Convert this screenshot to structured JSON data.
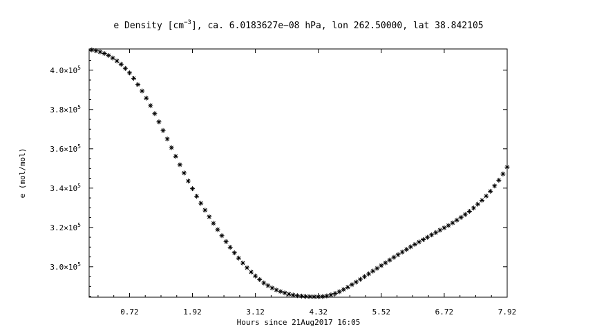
{
  "chart_data": {
    "type": "scatter",
    "title_main": "e Density [cm",
    "title_sup": "−3",
    "title_rest": "], ca. 6.0183627e−08 hPa, lon 262.50000, lat 38.842105",
    "xlabel": "Hours since 21Aug2017 16:05",
    "ylabel": "e (mol/mol)",
    "xlim": [
      -0.05,
      7.92
    ],
    "ylim": [
      284500,
      410800
    ],
    "x_ticks": [
      {
        "value": 0.72,
        "label": "0.72"
      },
      {
        "value": 1.92,
        "label": "1.92"
      },
      {
        "value": 3.12,
        "label": "3.12"
      },
      {
        "value": 4.32,
        "label": "4.32"
      },
      {
        "value": 5.52,
        "label": "5.52"
      },
      {
        "value": 6.72,
        "label": "6.72"
      },
      {
        "value": 7.92,
        "label": "7.92"
      }
    ],
    "y_ticks": [
      {
        "value": 300000,
        "mant": "3.0×10",
        "exp": "5"
      },
      {
        "value": 320000,
        "mant": "3.2×10",
        "exp": "5"
      },
      {
        "value": 340000,
        "mant": "3.4×10",
        "exp": "5"
      },
      {
        "value": 360000,
        "mant": "3.6×10",
        "exp": "5"
      },
      {
        "value": 380000,
        "mant": "3.8×10",
        "exp": "5"
      },
      {
        "value": 400000,
        "mant": "4.0×10",
        "exp": "5"
      }
    ],
    "marker": "asterisk",
    "series": [
      {
        "color": "#000000",
        "x": [
          0,
          0.08,
          0.16,
          0.24,
          0.32,
          0.4,
          0.48,
          0.56,
          0.64,
          0.72,
          0.8,
          0.88,
          0.96,
          1.04,
          1.12,
          1.2,
          1.28,
          1.36,
          1.44,
          1.52,
          1.6,
          1.68,
          1.76,
          1.84,
          1.92,
          2.0,
          2.08,
          2.16,
          2.24,
          2.32,
          2.4,
          2.48,
          2.56,
          2.64,
          2.72,
          2.8,
          2.88,
          2.96,
          3.04,
          3.12,
          3.2,
          3.28,
          3.36,
          3.44,
          3.52,
          3.6,
          3.68,
          3.76,
          3.84,
          3.92,
          4.0,
          4.08,
          4.16,
          4.24,
          4.32,
          4.4,
          4.48,
          4.56,
          4.64,
          4.72,
          4.8,
          4.88,
          4.96,
          5.04,
          5.12,
          5.2,
          5.28,
          5.36,
          5.44,
          5.52,
          5.6,
          5.68,
          5.76,
          5.84,
          5.92,
          6.0,
          6.08,
          6.16,
          6.24,
          6.32,
          6.4,
          6.48,
          6.56,
          6.64,
          6.72,
          6.8,
          6.88,
          6.96,
          7.04,
          7.12,
          7.2,
          7.28,
          7.36,
          7.44,
          7.52,
          7.6,
          7.68,
          7.76,
          7.84,
          7.92
        ],
        "y": [
          410300,
          409900,
          409300,
          408500,
          407500,
          406200,
          404700,
          403000,
          400900,
          398600,
          395900,
          392700,
          389400,
          385800,
          382000,
          377900,
          373700,
          369300,
          365000,
          360600,
          356200,
          351900,
          347700,
          343600,
          339700,
          335900,
          332300,
          328800,
          325400,
          322100,
          318900,
          315800,
          312800,
          309900,
          307100,
          304400,
          301900,
          299500,
          297300,
          295300,
          293500,
          291800,
          290400,
          289200,
          288200,
          287400,
          286700,
          286100,
          285600,
          285300,
          285050,
          284900,
          284800,
          284750,
          284750,
          284850,
          285150,
          285700,
          286400,
          287300,
          288400,
          289600,
          290900,
          292200,
          293600,
          295000,
          296400,
          297800,
          299200,
          300600,
          302000,
          303400,
          304800,
          306100,
          307500,
          308800,
          310100,
          311400,
          312600,
          313800,
          315000,
          316200,
          317400,
          318600,
          319800,
          321000,
          322300,
          323700,
          325100,
          326600,
          328200,
          329900,
          331800,
          333800,
          336000,
          338400,
          341100,
          344000,
          347200,
          350700
        ]
      }
    ]
  }
}
